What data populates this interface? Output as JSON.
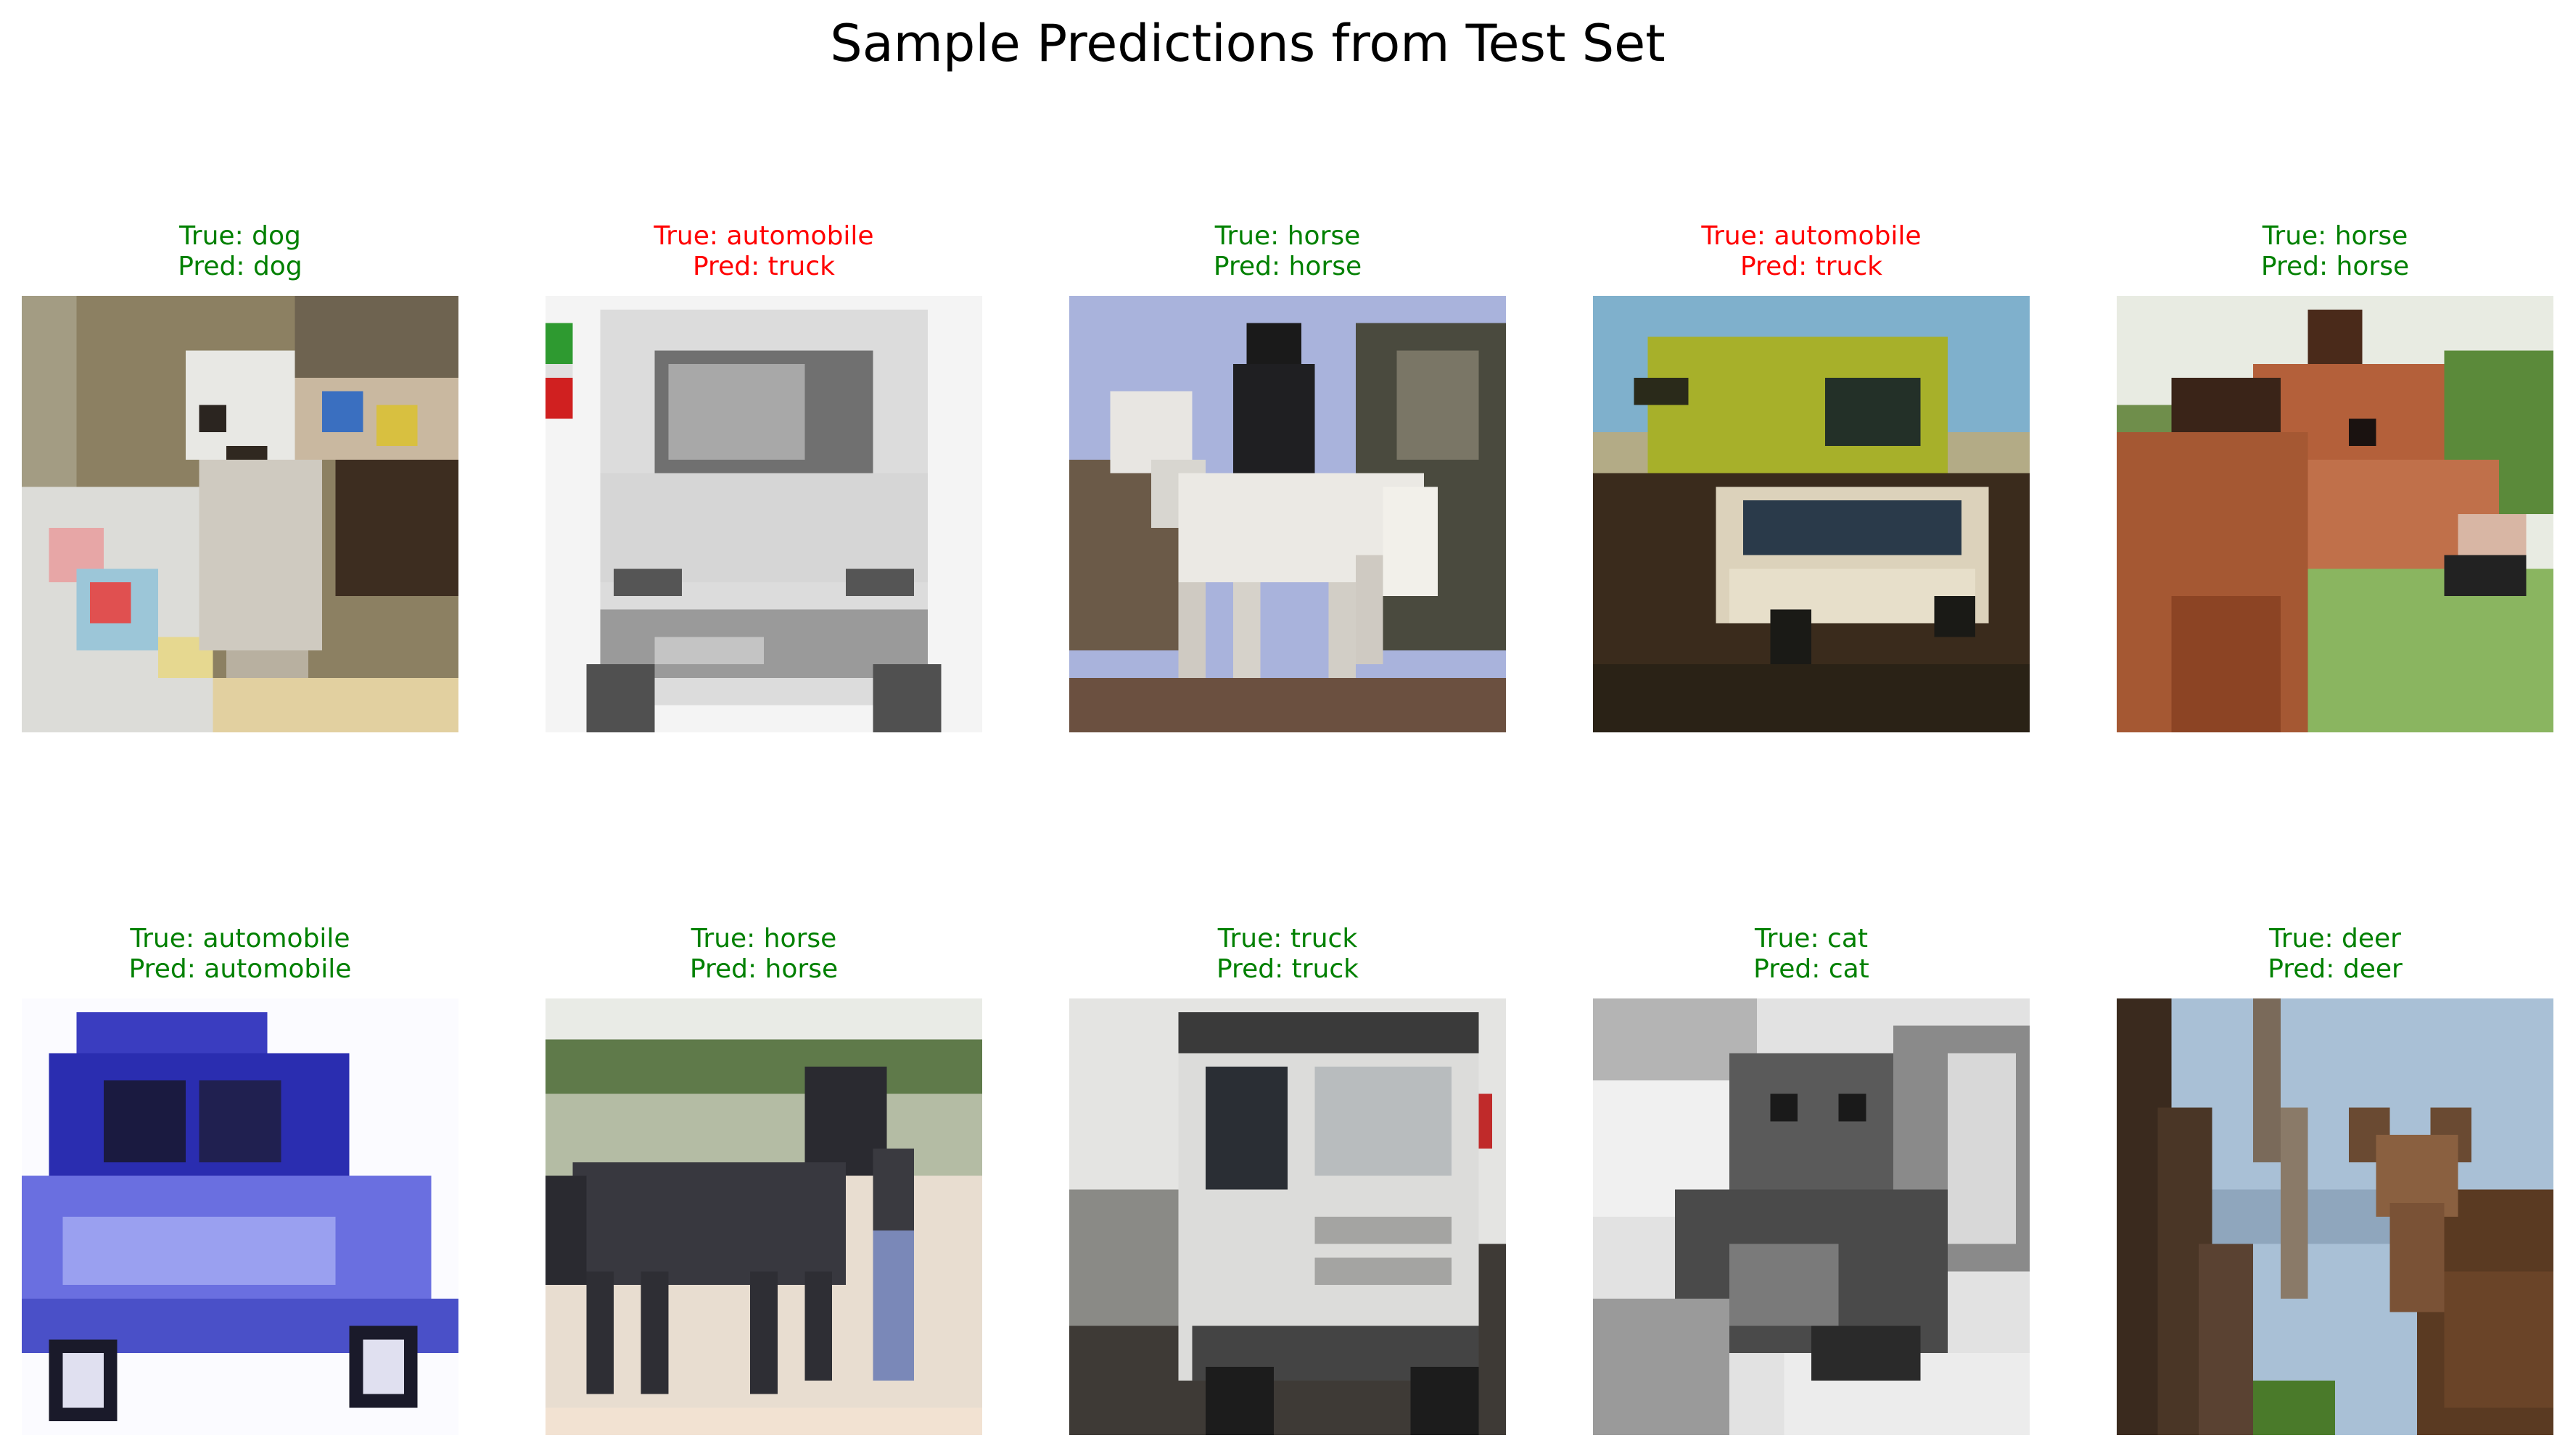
{
  "title": "Sample Predictions from Test Set",
  "colors": {
    "correct": "#008000",
    "incorrect": "#ff0000"
  },
  "panels": [
    {
      "true_label": "True: dog",
      "pred_label": "Pred: dog",
      "correct": true,
      "subject": "white dog on colorful blanket"
    },
    {
      "true_label": "True: automobile",
      "pred_label": "Pred: truck",
      "correct": false,
      "subject": "grayscale van front view"
    },
    {
      "true_label": "True: horse",
      "pred_label": "Pred: horse",
      "correct": true,
      "subject": "rider on white horse"
    },
    {
      "true_label": "True: automobile",
      "pred_label": "Pred: truck",
      "correct": false,
      "subject": "car with rooftop tent"
    },
    {
      "true_label": "True: horse",
      "pred_label": "Pred: horse",
      "correct": true,
      "subject": "brown horse head"
    },
    {
      "true_label": "True: automobile",
      "pred_label": "Pred: automobile",
      "correct": true,
      "subject": "blue car"
    },
    {
      "true_label": "True: horse",
      "pred_label": "Pred: horse",
      "correct": true,
      "subject": "dark horse in field"
    },
    {
      "true_label": "True: truck",
      "pred_label": "Pred: truck",
      "correct": true,
      "subject": "white truck front"
    },
    {
      "true_label": "True: cat",
      "pred_label": "Pred: cat",
      "correct": true,
      "subject": "grayscale cat"
    },
    {
      "true_label": "True: deer",
      "pred_label": "Pred: deer",
      "correct": true,
      "subject": "deer behind branches"
    }
  ]
}
